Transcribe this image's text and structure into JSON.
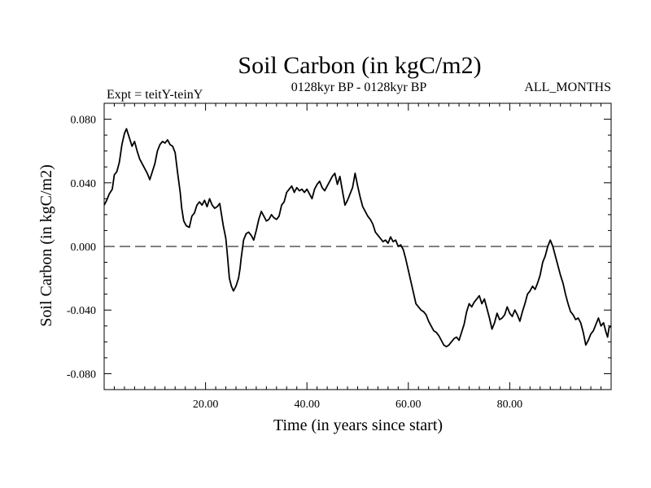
{
  "chart_data": {
    "type": "line",
    "title": "Soil Carbon (in kgC/m2)",
    "subtitle_left": "Expt = teitY-teinY",
    "subtitle_center": "0128kyr BP - 0128kyr BP",
    "subtitle_right": "ALL_MONTHS",
    "xlabel": "Time (in years since start)",
    "ylabel": "Soil Carbon (in kgC/m2)",
    "xlim": [
      0,
      100
    ],
    "ylim": [
      -0.09,
      0.09
    ],
    "xticks": [
      {
        "value": 20,
        "label": "20.00"
      },
      {
        "value": 40,
        "label": "40.00"
      },
      {
        "value": 60,
        "label": "60.00"
      },
      {
        "value": 80,
        "label": "80.00"
      }
    ],
    "yticks": [
      {
        "value": 0.08,
        "label": "0.080"
      },
      {
        "value": 0.04,
        "label": "0.040"
      },
      {
        "value": 0.0,
        "label": "0.000"
      },
      {
        "value": -0.04,
        "label": "-0.040"
      },
      {
        "value": -0.08,
        "label": "-0.080"
      }
    ],
    "zero_line": true,
    "series": [
      {
        "name": "Soil Carbon",
        "color": "#000000",
        "points": [
          [
            0.0,
            0.026
          ],
          [
            0.5,
            0.029
          ],
          [
            1.0,
            0.033
          ],
          [
            1.6,
            0.036
          ],
          [
            2.0,
            0.045
          ],
          [
            2.5,
            0.047
          ],
          [
            3.0,
            0.053
          ],
          [
            3.5,
            0.064
          ],
          [
            4.0,
            0.071
          ],
          [
            4.4,
            0.074
          ],
          [
            5.0,
            0.068
          ],
          [
            5.5,
            0.063
          ],
          [
            6.0,
            0.066
          ],
          [
            6.5,
            0.06
          ],
          [
            7.0,
            0.055
          ],
          [
            7.5,
            0.052
          ],
          [
            8.0,
            0.049
          ],
          [
            8.5,
            0.046
          ],
          [
            9.0,
            0.042
          ],
          [
            9.5,
            0.047
          ],
          [
            10.0,
            0.052
          ],
          [
            10.5,
            0.06
          ],
          [
            11.0,
            0.064
          ],
          [
            11.5,
            0.066
          ],
          [
            12.0,
            0.065
          ],
          [
            12.5,
            0.067
          ],
          [
            13.0,
            0.064
          ],
          [
            13.5,
            0.063
          ],
          [
            14.0,
            0.059
          ],
          [
            14.5,
            0.046
          ],
          [
            15.0,
            0.034
          ],
          [
            15.3,
            0.024
          ],
          [
            15.7,
            0.016
          ],
          [
            16.2,
            0.013
          ],
          [
            16.8,
            0.012
          ],
          [
            17.3,
            0.019
          ],
          [
            17.8,
            0.021
          ],
          [
            18.3,
            0.026
          ],
          [
            18.8,
            0.028
          ],
          [
            19.3,
            0.026
          ],
          [
            19.8,
            0.029
          ],
          [
            20.3,
            0.025
          ],
          [
            20.8,
            0.03
          ],
          [
            21.3,
            0.026
          ],
          [
            21.8,
            0.024
          ],
          [
            22.3,
            0.025
          ],
          [
            22.8,
            0.027
          ],
          [
            23.1,
            0.021
          ],
          [
            23.5,
            0.013
          ],
          [
            24.0,
            0.005
          ],
          [
            24.3,
            -0.005
          ],
          [
            24.7,
            -0.02
          ],
          [
            25.1,
            -0.025
          ],
          [
            25.5,
            -0.028
          ],
          [
            26.0,
            -0.025
          ],
          [
            26.5,
            -0.02
          ],
          [
            26.8,
            -0.014
          ],
          [
            27.0,
            -0.008
          ],
          [
            27.5,
            0.004
          ],
          [
            28.0,
            0.008
          ],
          [
            28.5,
            0.009
          ],
          [
            29.0,
            0.007
          ],
          [
            29.5,
            0.004
          ],
          [
            30.0,
            0.01
          ],
          [
            30.5,
            0.017
          ],
          [
            31.0,
            0.022
          ],
          [
            31.5,
            0.019
          ],
          [
            32.0,
            0.016
          ],
          [
            32.5,
            0.017
          ],
          [
            33.0,
            0.02
          ],
          [
            33.5,
            0.018
          ],
          [
            34.0,
            0.017
          ],
          [
            34.5,
            0.019
          ],
          [
            35.0,
            0.026
          ],
          [
            35.5,
            0.028
          ],
          [
            36.0,
            0.034
          ],
          [
            36.5,
            0.036
          ],
          [
            37.0,
            0.038
          ],
          [
            37.5,
            0.034
          ],
          [
            38.0,
            0.037
          ],
          [
            38.5,
            0.035
          ],
          [
            39.0,
            0.036
          ],
          [
            39.5,
            0.034
          ],
          [
            40.0,
            0.036
          ],
          [
            40.5,
            0.033
          ],
          [
            41.0,
            0.03
          ],
          [
            41.5,
            0.036
          ],
          [
            42.0,
            0.039
          ],
          [
            42.5,
            0.041
          ],
          [
            43.0,
            0.037
          ],
          [
            43.5,
            0.035
          ],
          [
            44.0,
            0.038
          ],
          [
            44.5,
            0.041
          ],
          [
            45.0,
            0.044
          ],
          [
            45.5,
            0.046
          ],
          [
            46.0,
            0.039
          ],
          [
            46.5,
            0.044
          ],
          [
            47.0,
            0.035
          ],
          [
            47.5,
            0.026
          ],
          [
            48.0,
            0.029
          ],
          [
            48.5,
            0.033
          ],
          [
            49.0,
            0.037
          ],
          [
            49.5,
            0.046
          ],
          [
            50.0,
            0.038
          ],
          [
            50.5,
            0.031
          ],
          [
            51.0,
            0.025
          ],
          [
            51.5,
            0.022
          ],
          [
            52.0,
            0.019
          ],
          [
            52.5,
            0.017
          ],
          [
            53.0,
            0.014
          ],
          [
            53.5,
            0.009
          ],
          [
            54.0,
            0.007
          ],
          [
            54.5,
            0.005
          ],
          [
            55.0,
            0.003
          ],
          [
            55.5,
            0.004
          ],
          [
            56.0,
            0.002
          ],
          [
            56.5,
            0.006
          ],
          [
            57.0,
            0.003
          ],
          [
            57.5,
            0.004
          ],
          [
            58.0,
            0.0
          ],
          [
            58.5,
            0.001
          ],
          [
            59.0,
            -0.002
          ],
          [
            59.5,
            -0.008
          ],
          [
            60.0,
            -0.015
          ],
          [
            60.5,
            -0.022
          ],
          [
            61.0,
            -0.029
          ],
          [
            61.5,
            -0.036
          ],
          [
            62.0,
            -0.038
          ],
          [
            62.5,
            -0.04
          ],
          [
            63.0,
            -0.041
          ],
          [
            63.5,
            -0.043
          ],
          [
            64.0,
            -0.047
          ],
          [
            64.5,
            -0.05
          ],
          [
            65.0,
            -0.053
          ],
          [
            65.5,
            -0.054
          ],
          [
            66.0,
            -0.056
          ],
          [
            66.5,
            -0.059
          ],
          [
            67.0,
            -0.062
          ],
          [
            67.5,
            -0.063
          ],
          [
            68.0,
            -0.062
          ],
          [
            68.5,
            -0.06
          ],
          [
            69.0,
            -0.058
          ],
          [
            69.5,
            -0.057
          ],
          [
            70.0,
            -0.059
          ],
          [
            70.5,
            -0.054
          ],
          [
            71.0,
            -0.049
          ],
          [
            71.5,
            -0.041
          ],
          [
            72.0,
            -0.036
          ],
          [
            72.5,
            -0.038
          ],
          [
            73.0,
            -0.035
          ],
          [
            73.5,
            -0.033
          ],
          [
            74.0,
            -0.031
          ],
          [
            74.5,
            -0.036
          ],
          [
            75.0,
            -0.033
          ],
          [
            75.5,
            -0.039
          ],
          [
            76.0,
            -0.045
          ],
          [
            76.5,
            -0.052
          ],
          [
            77.0,
            -0.048
          ],
          [
            77.5,
            -0.042
          ],
          [
            78.0,
            -0.046
          ],
          [
            78.5,
            -0.045
          ],
          [
            79.0,
            -0.043
          ],
          [
            79.5,
            -0.038
          ],
          [
            80.0,
            -0.042
          ],
          [
            80.5,
            -0.044
          ],
          [
            81.0,
            -0.04
          ],
          [
            81.5,
            -0.043
          ],
          [
            82.0,
            -0.047
          ],
          [
            82.5,
            -0.041
          ],
          [
            83.0,
            -0.036
          ],
          [
            83.5,
            -0.03
          ],
          [
            84.0,
            -0.028
          ],
          [
            84.5,
            -0.025
          ],
          [
            85.0,
            -0.027
          ],
          [
            85.5,
            -0.023
          ],
          [
            86.0,
            -0.018
          ],
          [
            86.5,
            -0.01
          ],
          [
            87.0,
            -0.006
          ],
          [
            87.5,
            0.0
          ],
          [
            88.0,
            0.004
          ],
          [
            88.5,
            0.0
          ],
          [
            89.0,
            -0.006
          ],
          [
            89.5,
            -0.012
          ],
          [
            90.0,
            -0.018
          ],
          [
            90.5,
            -0.023
          ],
          [
            91.0,
            -0.03
          ],
          [
            91.5,
            -0.036
          ],
          [
            92.0,
            -0.041
          ],
          [
            92.5,
            -0.043
          ],
          [
            93.0,
            -0.046
          ],
          [
            93.5,
            -0.045
          ],
          [
            94.0,
            -0.048
          ],
          [
            94.5,
            -0.054
          ],
          [
            95.0,
            -0.062
          ],
          [
            95.5,
            -0.059
          ],
          [
            96.0,
            -0.055
          ],
          [
            96.5,
            -0.053
          ],
          [
            97.0,
            -0.049
          ],
          [
            97.5,
            -0.045
          ],
          [
            98.0,
            -0.05
          ],
          [
            98.5,
            -0.048
          ],
          [
            99.0,
            -0.054
          ],
          [
            99.3,
            -0.057
          ],
          [
            99.6,
            -0.051
          ],
          [
            100.0,
            -0.05
          ]
        ]
      }
    ]
  }
}
